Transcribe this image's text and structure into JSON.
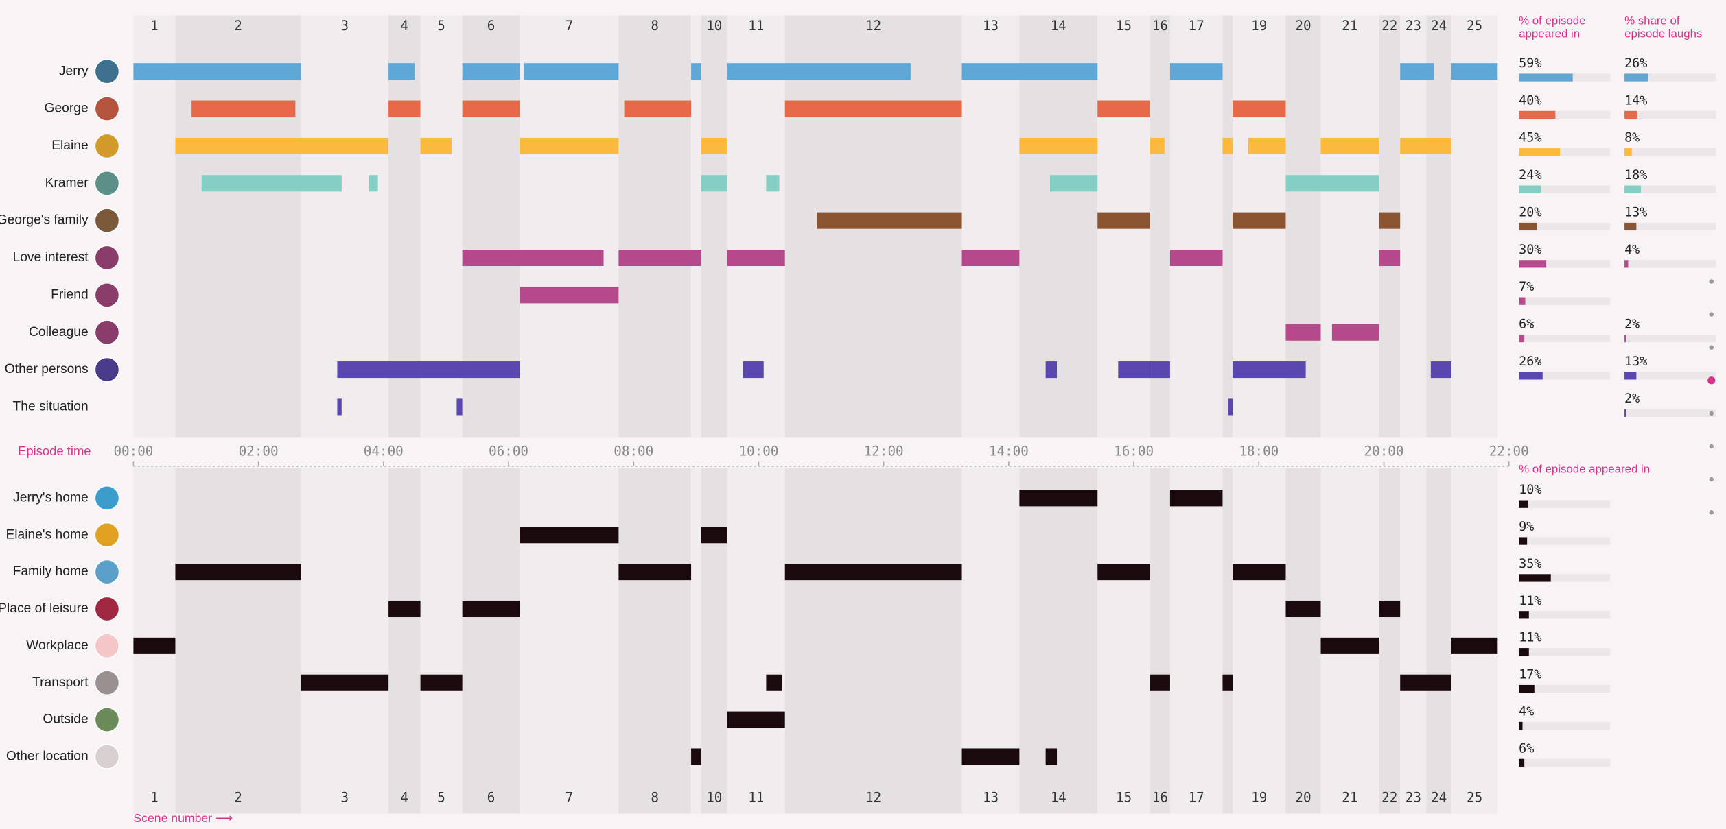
{
  "chart_data": [
    {
      "type": "timeline",
      "xlabel": "Episode time",
      "xlim": [
        0,
        22
      ],
      "xticks": [
        {
          "value": 0,
          "label": "00:00"
        },
        {
          "value": 2,
          "label": "02:00"
        },
        {
          "value": 4,
          "label": "04:00"
        },
        {
          "value": 6,
          "label": "06:00"
        },
        {
          "value": 8,
          "label": "08:00"
        },
        {
          "value": 10,
          "label": "10:00"
        },
        {
          "value": 12,
          "label": "12:00"
        },
        {
          "value": 14,
          "label": "14:00"
        },
        {
          "value": 16,
          "label": "16:00"
        },
        {
          "value": 18,
          "label": "18:00"
        },
        {
          "value": 20,
          "label": "20:00"
        },
        {
          "value": 22,
          "label": "22:00"
        }
      ],
      "scene_labels": [
        1,
        2,
        3,
        4,
        5,
        6,
        7,
        8,
        null,
        10,
        11,
        12,
        13,
        14,
        15,
        16,
        17,
        null,
        19,
        20,
        21,
        22,
        23,
        24,
        25
      ],
      "scene_edges": [
        0,
        0.67,
        2.68,
        4.08,
        4.59,
        5.26,
        6.18,
        7.76,
        8.92,
        9.08,
        9.5,
        10.42,
        13.25,
        14.17,
        15.42,
        16.26,
        16.58,
        17.42,
        17.58,
        18.43,
        18.99,
        19.92,
        20.26,
        20.68,
        21.08,
        21.82
      ],
      "series": [
        {
          "name": "Jerry",
          "color": "#5ea7d6",
          "segments": [
            [
              0,
              2.68
            ],
            [
              4.08,
              4.5
            ],
            [
              5.26,
              6.18
            ],
            [
              6.25,
              7.76
            ],
            [
              8.92,
              9.08
            ],
            [
              9.5,
              12.43
            ],
            [
              13.25,
              15.42
            ],
            [
              16.58,
              17.42
            ],
            [
              20.26,
              20.8
            ],
            [
              21.08,
              21.82
            ]
          ]
        },
        {
          "name": "George",
          "color": "#e8684a",
          "segments": [
            [
              0.93,
              2.59
            ],
            [
              4.08,
              4.59
            ],
            [
              5.26,
              6.18
            ],
            [
              7.85,
              8.92
            ],
            [
              10.42,
              13.25
            ],
            [
              15.42,
              16.26
            ],
            [
              17.58,
              18.43
            ]
          ]
        },
        {
          "name": "Elaine",
          "color": "#fbb93e",
          "segments": [
            [
              0.67,
              4.08
            ],
            [
              4.59,
              5.09
            ],
            [
              6.18,
              7.76
            ],
            [
              9.08,
              9.5
            ],
            [
              14.17,
              15.42
            ],
            [
              16.26,
              16.49
            ],
            [
              17.42,
              17.58
            ],
            [
              17.83,
              18.43
            ],
            [
              18.99,
              19.92
            ],
            [
              20.26,
              21.08
            ]
          ]
        },
        {
          "name": "Kramer",
          "color": "#84cec3",
          "segments": [
            [
              1.09,
              3.33
            ],
            [
              3.77,
              3.91
            ],
            [
              9.08,
              9.5
            ],
            [
              10.12,
              10.33
            ],
            [
              14.66,
              15.42
            ],
            [
              18.43,
              19.92
            ]
          ]
        },
        {
          "name": "George's family",
          "color": "#8a5530",
          "segments": [
            [
              10.93,
              13.25
            ],
            [
              15.42,
              16.26
            ],
            [
              17.58,
              18.43
            ],
            [
              19.92,
              20.26
            ]
          ]
        },
        {
          "name": "Love interest",
          "color": "#b5498b",
          "segments": [
            [
              5.26,
              7.52
            ],
            [
              7.76,
              9.08
            ],
            [
              9.5,
              10.42
            ],
            [
              13.25,
              14.17
            ],
            [
              16.58,
              17.42
            ],
            [
              19.92,
              20.26
            ]
          ]
        },
        {
          "name": "Friend",
          "color": "#b5498b",
          "segments": [
            [
              6.18,
              7.76
            ]
          ]
        },
        {
          "name": "Colleague",
          "color": "#b5498b",
          "segments": [
            [
              18.43,
              18.99
            ],
            [
              19.17,
              19.92
            ]
          ]
        },
        {
          "name": "Other persons",
          "color": "#5a47b0",
          "segments": [
            [
              3.26,
              6.18
            ],
            [
              9.75,
              10.08
            ],
            [
              14.59,
              14.77
            ],
            [
              15.75,
              16.26
            ],
            [
              16.26,
              16.58
            ],
            [
              17.58,
              18.75
            ],
            [
              20.75,
              21.08
            ]
          ]
        },
        {
          "name": "The situation",
          "color": "#5a47b0",
          "segments": [
            [
              3.26,
              3.33
            ],
            [
              5.17,
              5.26
            ],
            [
              17.51,
              17.58
            ]
          ]
        }
      ],
      "panels": [
        {
          "title": "% of episode appeared in",
          "xlim": [
            0,
            100
          ],
          "values": [
            59,
            40,
            45,
            24,
            20,
            30,
            7,
            6,
            26,
            null
          ],
          "value_labels": [
            "59%",
            "40%",
            "45%",
            "24%",
            "20%",
            "30%",
            "7%",
            "6%",
            "26%",
            null
          ]
        },
        {
          "title": "% share of episode laughs",
          "xlim": [
            0,
            100
          ],
          "values": [
            26,
            14,
            8,
            18,
            13,
            4,
            null,
            2,
            13,
            2
          ],
          "value_labels": [
            "26%",
            "14%",
            "8%",
            "18%",
            "13%",
            "4%",
            null,
            "2%",
            "13%",
            "2%"
          ]
        }
      ]
    },
    {
      "type": "timeline",
      "xlabel": "Scene number ⟶",
      "xlim": [
        0,
        22
      ],
      "color": "#1a0a0e",
      "series": [
        {
          "name": "Jerry's home",
          "segments": [
            [
              14.17,
              15.42
            ],
            [
              16.58,
              17.42
            ]
          ]
        },
        {
          "name": "Elaine's home",
          "segments": [
            [
              6.18,
              7.76
            ],
            [
              9.08,
              9.5
            ]
          ]
        },
        {
          "name": "Family home",
          "segments": [
            [
              0.67,
              2.68
            ],
            [
              7.76,
              8.92
            ],
            [
              10.42,
              13.25
            ],
            [
              15.42,
              16.26
            ],
            [
              17.58,
              18.43
            ]
          ]
        },
        {
          "name": "Place of leisure",
          "segments": [
            [
              4.08,
              4.59
            ],
            [
              5.26,
              6.18
            ],
            [
              18.43,
              18.99
            ],
            [
              19.92,
              20.26
            ]
          ]
        },
        {
          "name": "Workplace",
          "segments": [
            [
              0,
              0.67
            ],
            [
              18.99,
              19.92
            ],
            [
              21.08,
              21.82
            ]
          ]
        },
        {
          "name": "Transport",
          "segments": [
            [
              2.68,
              4.08
            ],
            [
              4.59,
              5.26
            ],
            [
              10.12,
              10.37
            ],
            [
              16.26,
              16.58
            ],
            [
              17.42,
              17.58
            ],
            [
              20.26,
              21.08
            ]
          ]
        },
        {
          "name": "Outside",
          "segments": [
            [
              9.5,
              10.42
            ]
          ]
        },
        {
          "name": "Other location",
          "segments": [
            [
              8.92,
              9.08
            ],
            [
              13.25,
              14.17
            ],
            [
              14.59,
              14.77
            ]
          ]
        }
      ],
      "panels": [
        {
          "title": "% of episode appeared in",
          "xlim": [
            0,
            100
          ],
          "values": [
            10,
            9,
            35,
            11,
            11,
            17,
            4,
            6
          ],
          "value_labels": [
            "10%",
            "9%",
            "35%",
            "11%",
            "11%",
            "17%",
            "4%",
            "6%"
          ]
        }
      ]
    }
  ]
}
